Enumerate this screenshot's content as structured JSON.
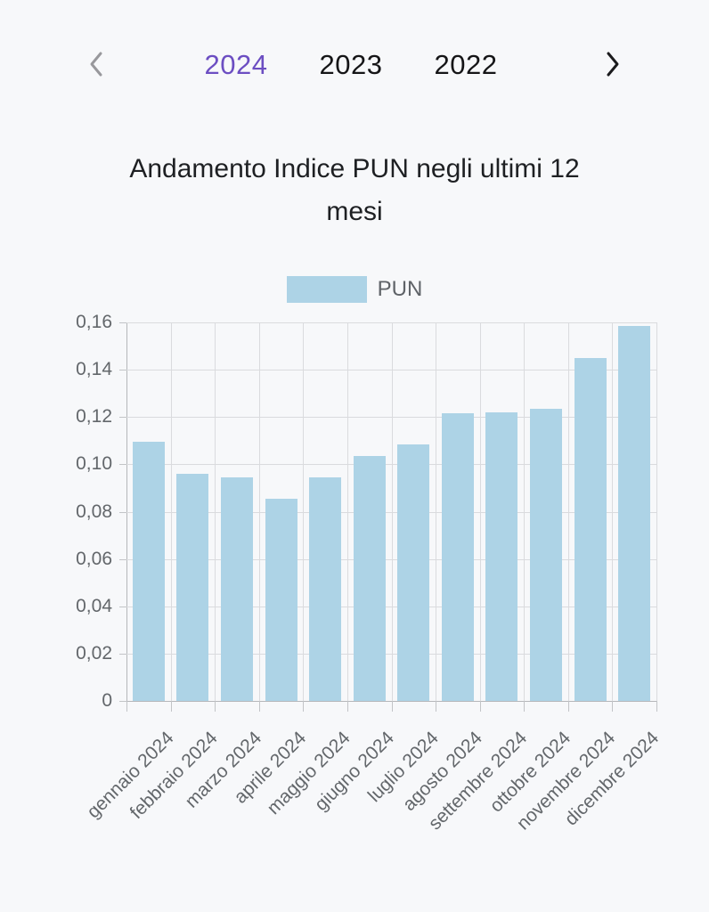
{
  "year_nav": {
    "prev_icon": "chevron-left",
    "next_icon": "chevron-right",
    "active_color": "#6c4ec2",
    "tabs": [
      {
        "label": "2024",
        "active": true
      },
      {
        "label": "2023",
        "active": false
      },
      {
        "label": "2022",
        "active": false
      }
    ]
  },
  "title": {
    "full": "Andamento Indice PUN negli ultimi 12 mesi",
    "line1": "Andamento Indice PUN negli ultimi 12",
    "line2": "mesi"
  },
  "legend": {
    "label": "PUN",
    "swatch_color": "#add3e6"
  },
  "chart_data": {
    "type": "bar",
    "title": "Andamento Indice PUN negli ultimi 12 mesi",
    "xlabel": "",
    "ylabel": "",
    "ylim": [
      0,
      0.16
    ],
    "ytick_step": 0.02,
    "ytick_labels": [
      "0",
      "0,02",
      "0,04",
      "0,06",
      "0,08",
      "0,10",
      "0,12",
      "0,14",
      "0,16"
    ],
    "grid": true,
    "legend_position": "top",
    "categories": [
      "gennaio 2024",
      "febbraio 2024",
      "marzo 2024",
      "aprile 2024",
      "maggio 2024",
      "giugno 2024",
      "luglio 2024",
      "agosto 2024",
      "settembre 2024",
      "ottobre 2024",
      "novembre 2024",
      "dicembre 2024"
    ],
    "series": [
      {
        "name": "PUN",
        "color": "#add3e6",
        "values": [
          0.1095,
          0.096,
          0.0945,
          0.0855,
          0.0945,
          0.1035,
          0.1085,
          0.1215,
          0.122,
          0.1235,
          0.145,
          0.1585
        ]
      }
    ]
  }
}
